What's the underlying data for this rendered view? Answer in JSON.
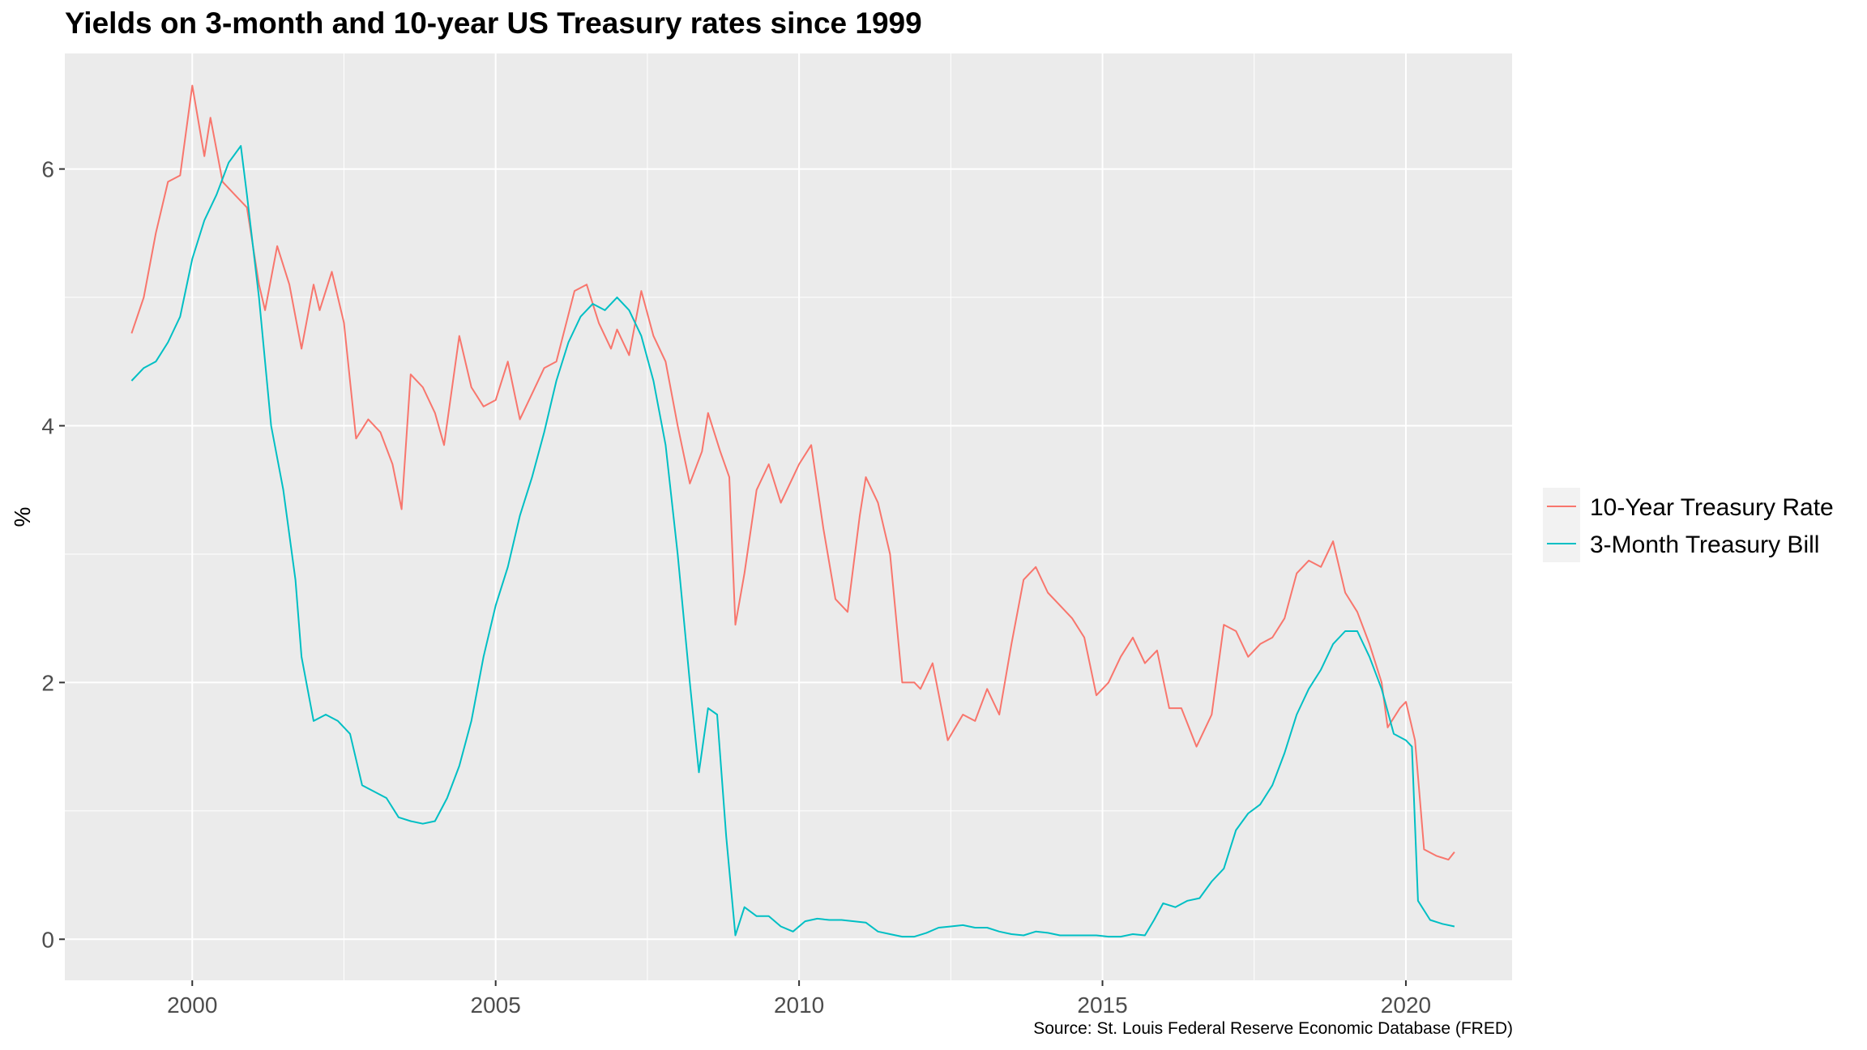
{
  "title": "Yields on 3-month and 10-year US Treasury rates since 1999",
  "caption": "Source: St. Louis Federal Reserve Economic Database (FRED)",
  "chart_data": {
    "type": "line",
    "title": "Yields on 3-month and 10-year US Treasury rates since 1999",
    "xlabel": "",
    "ylabel": "%",
    "xlim": [
      1997.9,
      2021.75
    ],
    "ylim": [
      -0.32,
      6.9
    ],
    "x_ticks": [
      2000,
      2005,
      2010,
      2015,
      2020
    ],
    "y_ticks": [
      0,
      2,
      4,
      6
    ],
    "grid": true,
    "legend": "right",
    "series": [
      {
        "name": "10-Year Treasury Rate",
        "color": "#F8766D",
        "points": [
          [
            1999.0,
            4.72
          ],
          [
            1999.2,
            5.0
          ],
          [
            1999.4,
            5.5
          ],
          [
            1999.6,
            5.9
          ],
          [
            1999.8,
            5.95
          ],
          [
            2000.0,
            6.65
          ],
          [
            2000.2,
            6.1
          ],
          [
            2000.3,
            6.4
          ],
          [
            2000.5,
            5.9
          ],
          [
            2000.7,
            5.8
          ],
          [
            2000.9,
            5.7
          ],
          [
            2001.1,
            5.1
          ],
          [
            2001.2,
            4.9
          ],
          [
            2001.4,
            5.4
          ],
          [
            2001.6,
            5.1
          ],
          [
            2001.8,
            4.6
          ],
          [
            2002.0,
            5.1
          ],
          [
            2002.1,
            4.9
          ],
          [
            2002.3,
            5.2
          ],
          [
            2002.5,
            4.8
          ],
          [
            2002.7,
            3.9
          ],
          [
            2002.9,
            4.05
          ],
          [
            2003.1,
            3.95
          ],
          [
            2003.3,
            3.7
          ],
          [
            2003.45,
            3.35
          ],
          [
            2003.6,
            4.4
          ],
          [
            2003.8,
            4.3
          ],
          [
            2004.0,
            4.1
          ],
          [
            2004.15,
            3.85
          ],
          [
            2004.4,
            4.7
          ],
          [
            2004.6,
            4.3
          ],
          [
            2004.8,
            4.15
          ],
          [
            2005.0,
            4.2
          ],
          [
            2005.2,
            4.5
          ],
          [
            2005.4,
            4.05
          ],
          [
            2005.6,
            4.25
          ],
          [
            2005.8,
            4.45
          ],
          [
            2006.0,
            4.5
          ],
          [
            2006.3,
            5.05
          ],
          [
            2006.5,
            5.1
          ],
          [
            2006.7,
            4.8
          ],
          [
            2006.9,
            4.6
          ],
          [
            2007.0,
            4.75
          ],
          [
            2007.2,
            4.55
          ],
          [
            2007.4,
            5.05
          ],
          [
            2007.6,
            4.7
          ],
          [
            2007.8,
            4.5
          ],
          [
            2008.0,
            4.0
          ],
          [
            2008.2,
            3.55
          ],
          [
            2008.4,
            3.8
          ],
          [
            2008.5,
            4.1
          ],
          [
            2008.7,
            3.8
          ],
          [
            2008.85,
            3.6
          ],
          [
            2008.95,
            2.45
          ],
          [
            2009.1,
            2.85
          ],
          [
            2009.3,
            3.5
          ],
          [
            2009.5,
            3.7
          ],
          [
            2009.7,
            3.4
          ],
          [
            2009.9,
            3.6
          ],
          [
            2010.0,
            3.7
          ],
          [
            2010.2,
            3.85
          ],
          [
            2010.4,
            3.2
          ],
          [
            2010.6,
            2.65
          ],
          [
            2010.8,
            2.55
          ],
          [
            2011.0,
            3.3
          ],
          [
            2011.1,
            3.6
          ],
          [
            2011.3,
            3.4
          ],
          [
            2011.5,
            3.0
          ],
          [
            2011.7,
            2.0
          ],
          [
            2011.9,
            2.0
          ],
          [
            2012.0,
            1.95
          ],
          [
            2012.2,
            2.15
          ],
          [
            2012.45,
            1.55
          ],
          [
            2012.7,
            1.75
          ],
          [
            2012.9,
            1.7
          ],
          [
            2013.1,
            1.95
          ],
          [
            2013.3,
            1.75
          ],
          [
            2013.5,
            2.3
          ],
          [
            2013.7,
            2.8
          ],
          [
            2013.9,
            2.9
          ],
          [
            2014.1,
            2.7
          ],
          [
            2014.3,
            2.6
          ],
          [
            2014.5,
            2.5
          ],
          [
            2014.7,
            2.35
          ],
          [
            2014.9,
            1.9
          ],
          [
            2015.1,
            2.0
          ],
          [
            2015.3,
            2.2
          ],
          [
            2015.5,
            2.35
          ],
          [
            2015.7,
            2.15
          ],
          [
            2015.9,
            2.25
          ],
          [
            2016.1,
            1.8
          ],
          [
            2016.3,
            1.8
          ],
          [
            2016.55,
            1.5
          ],
          [
            2016.8,
            1.75
          ],
          [
            2017.0,
            2.45
          ],
          [
            2017.2,
            2.4
          ],
          [
            2017.4,
            2.2
          ],
          [
            2017.6,
            2.3
          ],
          [
            2017.8,
            2.35
          ],
          [
            2018.0,
            2.5
          ],
          [
            2018.2,
            2.85
          ],
          [
            2018.4,
            2.95
          ],
          [
            2018.6,
            2.9
          ],
          [
            2018.8,
            3.1
          ],
          [
            2019.0,
            2.7
          ],
          [
            2019.2,
            2.55
          ],
          [
            2019.4,
            2.3
          ],
          [
            2019.6,
            2.0
          ],
          [
            2019.7,
            1.65
          ],
          [
            2019.9,
            1.8
          ],
          [
            2020.0,
            1.85
          ],
          [
            2020.15,
            1.55
          ],
          [
            2020.3,
            0.7
          ],
          [
            2020.5,
            0.65
          ],
          [
            2020.7,
            0.62
          ],
          [
            2020.8,
            0.68
          ]
        ]
      },
      {
        "name": "3-Month Treasury Bill",
        "color": "#00BFC4",
        "points": [
          [
            1999.0,
            4.35
          ],
          [
            1999.2,
            4.45
          ],
          [
            1999.4,
            4.5
          ],
          [
            1999.6,
            4.65
          ],
          [
            1999.8,
            4.85
          ],
          [
            2000.0,
            5.3
          ],
          [
            2000.2,
            5.6
          ],
          [
            2000.4,
            5.8
          ],
          [
            2000.6,
            6.05
          ],
          [
            2000.8,
            6.18
          ],
          [
            2000.9,
            5.8
          ],
          [
            2001.1,
            5.0
          ],
          [
            2001.3,
            4.0
          ],
          [
            2001.5,
            3.5
          ],
          [
            2001.7,
            2.8
          ],
          [
            2001.8,
            2.2
          ],
          [
            2002.0,
            1.7
          ],
          [
            2002.2,
            1.75
          ],
          [
            2002.4,
            1.7
          ],
          [
            2002.6,
            1.6
          ],
          [
            2002.8,
            1.2
          ],
          [
            2003.0,
            1.15
          ],
          [
            2003.2,
            1.1
          ],
          [
            2003.4,
            0.95
          ],
          [
            2003.6,
            0.92
          ],
          [
            2003.8,
            0.9
          ],
          [
            2004.0,
            0.92
          ],
          [
            2004.2,
            1.1
          ],
          [
            2004.4,
            1.35
          ],
          [
            2004.6,
            1.7
          ],
          [
            2004.8,
            2.2
          ],
          [
            2005.0,
            2.6
          ],
          [
            2005.2,
            2.9
          ],
          [
            2005.4,
            3.3
          ],
          [
            2005.6,
            3.6
          ],
          [
            2005.8,
            3.95
          ],
          [
            2006.0,
            4.35
          ],
          [
            2006.2,
            4.65
          ],
          [
            2006.4,
            4.85
          ],
          [
            2006.6,
            4.95
          ],
          [
            2006.8,
            4.9
          ],
          [
            2007.0,
            5.0
          ],
          [
            2007.2,
            4.9
          ],
          [
            2007.4,
            4.7
          ],
          [
            2007.6,
            4.35
          ],
          [
            2007.8,
            3.85
          ],
          [
            2008.0,
            3.0
          ],
          [
            2008.2,
            2.0
          ],
          [
            2008.35,
            1.3
          ],
          [
            2008.5,
            1.8
          ],
          [
            2008.65,
            1.75
          ],
          [
            2008.8,
            0.8
          ],
          [
            2008.95,
            0.03
          ],
          [
            2009.1,
            0.25
          ],
          [
            2009.3,
            0.18
          ],
          [
            2009.5,
            0.18
          ],
          [
            2009.7,
            0.1
          ],
          [
            2009.9,
            0.06
          ],
          [
            2010.1,
            0.14
          ],
          [
            2010.3,
            0.16
          ],
          [
            2010.5,
            0.15
          ],
          [
            2010.7,
            0.15
          ],
          [
            2010.9,
            0.14
          ],
          [
            2011.1,
            0.13
          ],
          [
            2011.3,
            0.06
          ],
          [
            2011.5,
            0.04
          ],
          [
            2011.7,
            0.02
          ],
          [
            2011.9,
            0.02
          ],
          [
            2012.1,
            0.05
          ],
          [
            2012.3,
            0.09
          ],
          [
            2012.5,
            0.1
          ],
          [
            2012.7,
            0.11
          ],
          [
            2012.9,
            0.09
          ],
          [
            2013.1,
            0.09
          ],
          [
            2013.3,
            0.06
          ],
          [
            2013.5,
            0.04
          ],
          [
            2013.7,
            0.03
          ],
          [
            2013.9,
            0.06
          ],
          [
            2014.1,
            0.05
          ],
          [
            2014.3,
            0.03
          ],
          [
            2014.5,
            0.03
          ],
          [
            2014.7,
            0.03
          ],
          [
            2014.9,
            0.03
          ],
          [
            2015.1,
            0.02
          ],
          [
            2015.3,
            0.02
          ],
          [
            2015.5,
            0.04
          ],
          [
            2015.7,
            0.03
          ],
          [
            2015.85,
            0.15
          ],
          [
            2016.0,
            0.28
          ],
          [
            2016.2,
            0.25
          ],
          [
            2016.4,
            0.3
          ],
          [
            2016.6,
            0.32
          ],
          [
            2016.8,
            0.45
          ],
          [
            2017.0,
            0.55
          ],
          [
            2017.2,
            0.85
          ],
          [
            2017.4,
            0.98
          ],
          [
            2017.6,
            1.05
          ],
          [
            2017.8,
            1.2
          ],
          [
            2018.0,
            1.45
          ],
          [
            2018.2,
            1.75
          ],
          [
            2018.4,
            1.95
          ],
          [
            2018.6,
            2.1
          ],
          [
            2018.8,
            2.3
          ],
          [
            2019.0,
            2.4
          ],
          [
            2019.2,
            2.4
          ],
          [
            2019.4,
            2.2
          ],
          [
            2019.6,
            1.95
          ],
          [
            2019.8,
            1.6
          ],
          [
            2020.0,
            1.55
          ],
          [
            2020.1,
            1.5
          ],
          [
            2020.2,
            0.3
          ],
          [
            2020.4,
            0.15
          ],
          [
            2020.6,
            0.12
          ],
          [
            2020.8,
            0.1
          ]
        ]
      }
    ]
  }
}
